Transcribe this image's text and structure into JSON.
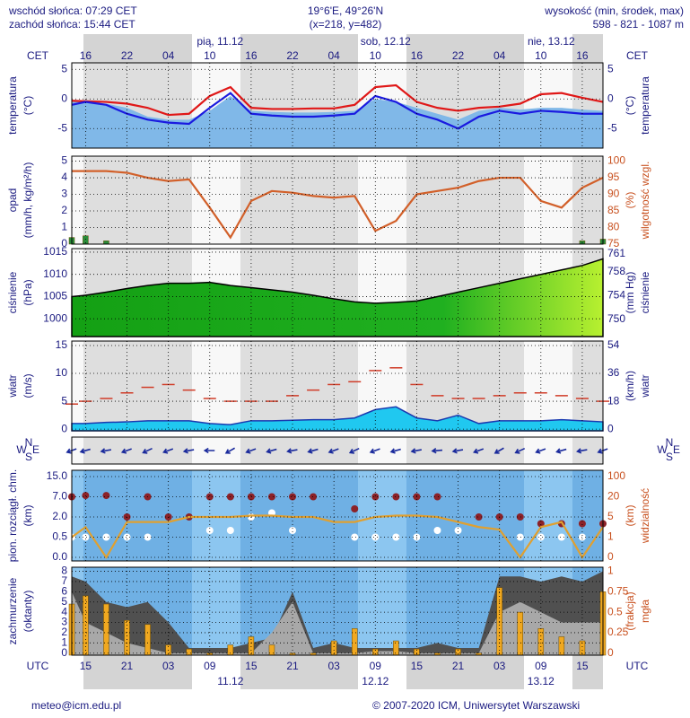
{
  "header": {
    "sunrise": "wschód słońca: 07:29 CET",
    "sunset": "zachód słońca: 15:44 CET",
    "coords": "19°6'E, 49°26'N",
    "grid": "(x=218, y=482)",
    "height_title": "wysokość (min, środek, max)",
    "heights": "598 - 821 - 1087 m"
  },
  "footer": {
    "email": "meteo@icm.edu.pl",
    "copyright": "© 2007-2020 ICM, Uniwersytet Warszawski"
  },
  "chart_data": [
    {
      "type": "line",
      "xlabel": "CET",
      "ylabel": [
        "temperatura",
        "(°C)"
      ],
      "y2label": [
        "(°C)",
        "temperatura"
      ],
      "x": [
        -2,
        0,
        3,
        6,
        9,
        12,
        15,
        18,
        21,
        24,
        27,
        30,
        33,
        36,
        39,
        42,
        45,
        48,
        51,
        54,
        57,
        60,
        63,
        66,
        69,
        72,
        75
      ],
      "xlim": [
        -2,
        75
      ],
      "xticks": [
        {
          "value": 0,
          "label": "16"
        },
        {
          "value": 6,
          "label": "22"
        },
        {
          "value": 12,
          "label": "04"
        },
        {
          "value": 18,
          "label": "10"
        },
        {
          "value": 24,
          "label": "16"
        },
        {
          "value": 30,
          "label": "22"
        },
        {
          "value": 36,
          "label": "04"
        },
        {
          "value": 42,
          "label": "10"
        },
        {
          "value": 48,
          "label": "16"
        },
        {
          "value": 54,
          "label": "22"
        },
        {
          "value": 60,
          "label": "04"
        },
        {
          "value": 66,
          "label": "10"
        },
        {
          "value": 72,
          "label": "16"
        }
      ],
      "dates": [
        {
          "value": 19.5,
          "label": "pią, 11.12"
        },
        {
          "value": 43.5,
          "label": "sob, 12.12"
        },
        {
          "value": 67.5,
          "label": "nie, 13.12"
        }
      ],
      "ylim": [
        -8.3,
        6.1
      ],
      "yticks": [
        5,
        0,
        -5
      ],
      "y2lim": [
        -8.3,
        6.1
      ],
      "y2ticks": [
        5,
        0,
        -5
      ],
      "grid": true,
      "series": [
        {
          "type": "area",
          "color": "#80b8e8",
          "values": [
            -0.5,
            -0.5,
            -0.8,
            -1.5,
            -3,
            -3.5,
            -3.5,
            -2,
            0.5,
            -2,
            -2.2,
            -2.3,
            -2.3,
            -2.2,
            -2,
            0,
            -0.5,
            -1.5,
            -2.5,
            -3.5,
            -2,
            -1.5,
            -1.8,
            -1.5,
            -1.5,
            -1.8,
            -2
          ]
        },
        {
          "type": "line",
          "color": "#e01818",
          "values": [
            -0.3,
            -0.4,
            -0.5,
            -0.8,
            -1.5,
            -2.7,
            -2.5,
            0.5,
            2,
            -1.5,
            -1.7,
            -1.7,
            -1.6,
            -1.6,
            -1,
            2,
            2.3,
            -0.5,
            -1.5,
            -2,
            -1.5,
            -1.3,
            -0.8,
            0.8,
            1,
            0.2,
            -0.5
          ]
        },
        {
          "type": "line",
          "color": "#1a1ae0",
          "values": [
            -1,
            -0.5,
            -1,
            -2.5,
            -3.5,
            -4,
            -4.2,
            -1.5,
            1,
            -2.5,
            -2.8,
            -3,
            -3,
            -2.8,
            -2.5,
            0.5,
            -0.5,
            -2.5,
            -3.5,
            -5,
            -3,
            -2,
            -2.5,
            -2,
            -2.2,
            -2.5,
            -2.5
          ]
        }
      ]
    },
    {
      "type": "line",
      "ylabel": [
        "opad",
        "(mm/h, kg/m²/h)"
      ],
      "y2label": [
        "(%)",
        "wilgotność wzgl."
      ],
      "y2color": "#c8501e",
      "x": [
        -2,
        0,
        3,
        6,
        9,
        12,
        15,
        18,
        21,
        24,
        27,
        30,
        33,
        36,
        39,
        42,
        45,
        48,
        51,
        54,
        57,
        60,
        63,
        66,
        69,
        72,
        75
      ],
      "xlim": [
        -2,
        75
      ],
      "ylim": [
        0,
        5.3
      ],
      "yticks": [
        0,
        1,
        2,
        3,
        4,
        5
      ],
      "y2lim": [
        75,
        101.5
      ],
      "y2ticks": [
        75,
        80,
        85,
        90,
        95,
        100
      ],
      "grid": true,
      "series": [
        {
          "type": "bar",
          "color": "#2a8c3a",
          "values": [
            0.4,
            0.5,
            0.2,
            0,
            0,
            0,
            0,
            0,
            0,
            0,
            0,
            0,
            0,
            0,
            0,
            0,
            0,
            0,
            0,
            0,
            0,
            0,
            0,
            0,
            0,
            0.2,
            0.3
          ]
        },
        {
          "type": "line",
          "color": "#d2602a",
          "axis": "y2",
          "values": [
            97,
            97,
            97,
            96.5,
            95,
            94,
            94.5,
            86,
            77,
            88,
            91,
            90.5,
            89.5,
            89,
            89.5,
            79,
            82,
            90,
            91,
            92,
            94,
            95,
            95,
            88,
            86,
            92,
            95
          ]
        }
      ]
    },
    {
      "type": "area",
      "ylabel": [
        "ciśnienie",
        "(hPa)"
      ],
      "y2label": [
        "(mm Hg)",
        "ciśnienie"
      ],
      "x": [
        -2,
        0,
        3,
        6,
        9,
        12,
        15,
        18,
        21,
        24,
        27,
        30,
        33,
        36,
        39,
        42,
        45,
        48,
        51,
        54,
        57,
        60,
        63,
        66,
        69,
        72,
        75
      ],
      "xlim": [
        -2,
        75
      ],
      "ylim": [
        996,
        1015.8
      ],
      "yticks": [
        1000,
        1005,
        1010,
        1015
      ],
      "y2lim": [
        747.06,
        761.91
      ],
      "y2ticks": [
        750,
        754,
        758,
        761
      ],
      "grid": true,
      "series": [
        {
          "type": "area",
          "color": "#22a020",
          "values": [
            1005,
            1005.3,
            1006,
            1006.8,
            1007.5,
            1008,
            1008,
            1008.2,
            1007.5,
            1007,
            1006.5,
            1006,
            1005.3,
            1004.5,
            1003.8,
            1003.5,
            1003.7,
            1004,
            1005,
            1006,
            1007,
            1008,
            1009,
            1010,
            1011,
            1012,
            1013.5
          ]
        }
      ]
    },
    {
      "type": "line",
      "ylabel": [
        "wiatr",
        "(m/s)"
      ],
      "y2label": [
        "(km/h)",
        "wiatr"
      ],
      "x": [
        -2,
        0,
        3,
        6,
        9,
        12,
        15,
        18,
        21,
        24,
        27,
        30,
        33,
        36,
        39,
        42,
        45,
        48,
        51,
        54,
        57,
        60,
        63,
        66,
        69,
        72,
        75
      ],
      "xlim": [
        -2,
        75
      ],
      "ylim": [
        -0.3,
        15.8
      ],
      "yticks": [
        0,
        5,
        10,
        15
      ],
      "y2lim": [
        -1.08,
        56.88
      ],
      "y2ticks": [
        0,
        18,
        36,
        54
      ],
      "grid": true,
      "series": [
        {
          "type": "area",
          "color": "#20c8f0",
          "values": [
            1,
            1,
            1.2,
            1.3,
            1.5,
            1.5,
            1.5,
            1,
            0.8,
            1.5,
            1.5,
            1.6,
            1.7,
            1.7,
            2,
            3.5,
            4,
            2,
            1.5,
            2.5,
            1,
            1.5,
            1.5,
            1.5,
            1.7,
            1.5,
            1.3
          ]
        },
        {
          "type": "dash",
          "color": "#d03c28",
          "values": [
            4.5,
            5,
            5.5,
            6.5,
            7.5,
            8,
            7,
            5.5,
            5,
            5,
            5,
            6,
            7,
            8,
            8.5,
            10.5,
            11,
            8,
            6,
            5.5,
            5.5,
            6,
            6.5,
            6.5,
            6,
            5.5,
            5
          ]
        }
      ]
    },
    {
      "type": "vector",
      "compass": {
        "w": "W",
        "n": "N",
        "s": "S",
        "e": "E"
      },
      "x": [
        -2,
        0,
        3,
        6,
        9,
        12,
        15,
        18,
        21,
        24,
        27,
        30,
        33,
        36,
        39,
        42,
        45,
        48,
        51,
        54,
        57,
        60,
        63,
        66,
        69,
        72,
        75
      ],
      "xlim": [
        -2,
        75
      ],
      "series": [
        {
          "type": "vector",
          "color": "#1a2a9c",
          "values": [
            70,
            75,
            80,
            70,
            65,
            70,
            80,
            90,
            60,
            70,
            75,
            80,
            75,
            70,
            65,
            70,
            75,
            80,
            85,
            80,
            70,
            60,
            65,
            70,
            75,
            80,
            70
          ]
        }
      ]
    },
    {
      "type": "scatter",
      "ylabel": [
        "pion. rozciągł. chm.",
        "(km)"
      ],
      "y2label": [
        "(km)",
        "widzialność"
      ],
      "y2color": "#c8501e",
      "yscale": "piecewise",
      "x": [
        -2,
        0,
        3,
        6,
        9,
        12,
        15,
        18,
        21,
        24,
        27,
        30,
        33,
        36,
        39,
        42,
        45,
        48,
        51,
        54,
        57,
        60,
        63,
        66,
        69,
        72,
        75
      ],
      "xlim": [
        -2,
        75
      ],
      "ylim": [
        0,
        15
      ],
      "yticks": [
        {
          "value": 0,
          "label": "0.0"
        },
        {
          "value": 0.5,
          "label": "0.5"
        },
        {
          "value": 2,
          "label": "2.0"
        },
        {
          "value": 7,
          "label": "7.0"
        },
        {
          "value": 15,
          "label": "15.0"
        }
      ],
      "y2lim": [
        0,
        100
      ],
      "y2ticks": [
        0,
        1,
        5,
        20,
        100
      ],
      "grid": true,
      "series": [
        {
          "type": "dots",
          "color": "#8c2228",
          "values": [
            7,
            7.5,
            7.5,
            2,
            7,
            2,
            2,
            7,
            7,
            7,
            7,
            7,
            7,
            null,
            4,
            7,
            7,
            7,
            7,
            null,
            2,
            2,
            2,
            1.5,
            1.5,
            1.5,
            1.5
          ]
        },
        {
          "type": "dots",
          "color": "#ffffff",
          "values": [
            0.5,
            0.5,
            0.5,
            0.5,
            0.5,
            null,
            null,
            1,
            1,
            2,
            3,
            1,
            null,
            null,
            0.5,
            0.5,
            0.5,
            0.5,
            1,
            1,
            null,
            null,
            0.5,
            0.5,
            0.5,
            0.5,
            null
          ]
        },
        {
          "type": "line",
          "color": "#e0a030",
          "axis": "y2",
          "values": [
            1,
            3,
            0,
            4,
            4,
            4,
            5,
            5,
            5,
            6,
            6,
            5,
            5,
            4,
            4,
            5,
            6,
            6,
            5,
            4,
            3,
            2.5,
            0,
            3,
            4,
            0,
            3
          ]
        }
      ]
    },
    {
      "type": "area",
      "xlabel": "UTC",
      "ylabel": [
        "zachmurzenie",
        "(oktanty)"
      ],
      "y2label": [
        "(frakcja)",
        "mgła"
      ],
      "y2color": "#c8501e",
      "x": [
        -2,
        0,
        3,
        6,
        9,
        12,
        15,
        18,
        21,
        24,
        27,
        30,
        33,
        36,
        39,
        42,
        45,
        48,
        51,
        54,
        57,
        60,
        63,
        66,
        69,
        72,
        75
      ],
      "xlim": [
        -2,
        75
      ],
      "xticks": [
        {
          "value": 0,
          "label": "15"
        },
        {
          "value": 6,
          "label": "21"
        },
        {
          "value": 12,
          "label": "03"
        },
        {
          "value": 18,
          "label": "09"
        },
        {
          "value": 24,
          "label": "15"
        },
        {
          "value": 30,
          "label": "21"
        },
        {
          "value": 36,
          "label": "03"
        },
        {
          "value": 42,
          "label": "09"
        },
        {
          "value": 48,
          "label": "15"
        },
        {
          "value": 54,
          "label": "21"
        },
        {
          "value": 60,
          "label": "03"
        },
        {
          "value": 66,
          "label": "09"
        },
        {
          "value": 72,
          "label": "15"
        }
      ],
      "dates": [
        {
          "value": 21,
          "label": "11.12"
        },
        {
          "value": 42,
          "label": "12.12"
        },
        {
          "value": 66,
          "label": "13.12"
        }
      ],
      "ylim": [
        -0.2,
        8.4
      ],
      "yticks": [
        0,
        1,
        2,
        3,
        4,
        5,
        6,
        7,
        8
      ],
      "y2lim": [
        -0.025,
        1.05
      ],
      "y2ticks": [
        0,
        0.25,
        0.5,
        0.75,
        1
      ],
      "grid": true,
      "series": [
        {
          "type": "area",
          "color": "#505050",
          "values": [
            7.5,
            7,
            5,
            4.5,
            5,
            3,
            0.5,
            0.5,
            0.5,
            1,
            1.5,
            6,
            0.5,
            1,
            0.5,
            0.5,
            0.5,
            0.5,
            1,
            0.5,
            0.5,
            7.5,
            7.5,
            7,
            7.5,
            7,
            8
          ]
        },
        {
          "type": "area",
          "color": "#a8a8a8",
          "values": [
            6,
            3,
            2,
            1,
            0.5,
            0,
            0,
            0,
            0,
            0,
            2,
            5,
            0,
            0,
            0,
            0.2,
            0.2,
            0,
            0,
            0,
            0,
            4,
            5,
            4,
            3,
            3,
            3
          ]
        },
        {
          "type": "bar",
          "color": "#f0a820",
          "axis": "y2",
          "values": [
            0.6,
            0.7,
            0.6,
            0.4,
            0.35,
            0.1,
            0.05,
            0,
            0.1,
            0.2,
            0.1,
            0,
            0,
            0.15,
            0.3,
            0.05,
            0.15,
            0.05,
            0,
            0.05,
            0,
            0.8,
            0.5,
            0.3,
            0.2,
            0.15,
            0.75
          ]
        }
      ]
    }
  ]
}
